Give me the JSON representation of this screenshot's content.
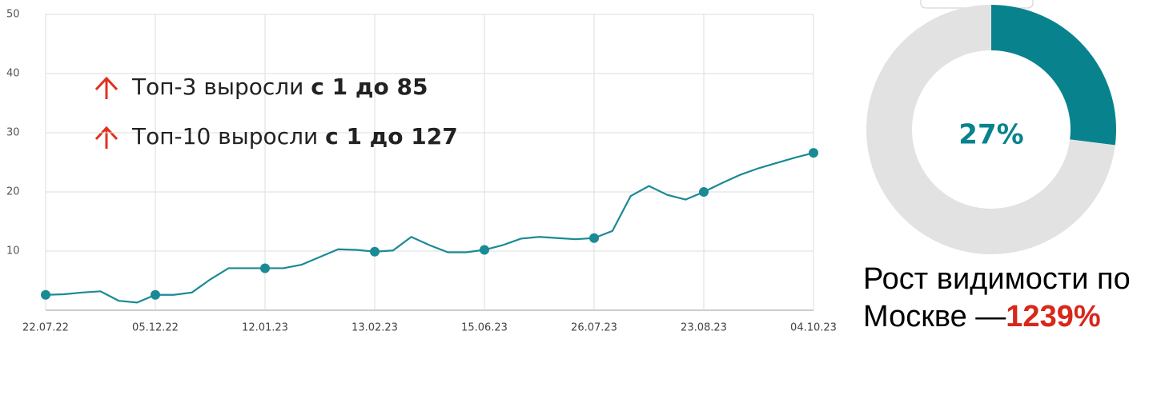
{
  "chart_data": [
    {
      "type": "line",
      "categories": [
        "22.07.22",
        null,
        null,
        null,
        null,
        null,
        "05.12.22",
        null,
        null,
        null,
        null,
        null,
        "12.01.23",
        null,
        null,
        null,
        null,
        null,
        "13.02.23",
        null,
        null,
        null,
        null,
        null,
        "15.06.23",
        null,
        null,
        null,
        null,
        null,
        "26.07.23",
        null,
        null,
        null,
        null,
        null,
        "23.08.23",
        null,
        null,
        null,
        null,
        null,
        "04.10.23"
      ],
      "series": [
        {
          "color": "#1a8a94",
          "values": [
            2.6,
            2.7,
            3.0,
            3.2,
            1.6,
            1.3,
            2.6,
            2.6,
            3.0,
            5.2,
            7.1,
            7.1,
            7.1,
            7.1,
            7.7,
            9.0,
            10.3,
            10.2,
            9.9,
            10.1,
            12.4,
            11.0,
            9.8,
            9.8,
            10.2,
            11.0,
            12.1,
            12.4,
            12.2,
            12.0,
            12.2,
            13.4,
            19.3,
            21.0,
            19.5,
            18.7,
            20.0,
            21.5,
            22.9,
            24.0,
            24.9,
            25.8,
            26.6
          ]
        }
      ],
      "ylim": [
        0,
        50
      ],
      "yticks": [
        10,
        20,
        30,
        40,
        50
      ],
      "grid": true,
      "annotations": [
        {
          "text": "Топ-3 выросли",
          "highlight": "с 1 до 85"
        },
        {
          "text": "Топ-10 выросли",
          "highlight": "с 1 до 127"
        }
      ]
    },
    {
      "type": "pie",
      "values": [
        27,
        73
      ],
      "value_labels": [
        "27%",
        null
      ],
      "colors": [
        "#08838d",
        "#e2e2e2"
      ]
    }
  ],
  "caption": {
    "text": "Рост видимости по Москве —",
    "highlight": "1239%"
  }
}
